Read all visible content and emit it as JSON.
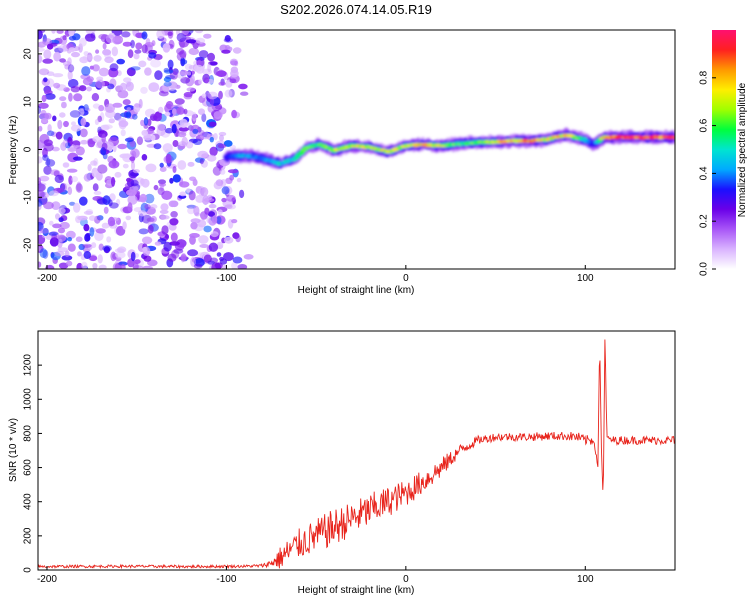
{
  "title": "S202.2026.074.14.05.R19",
  "chart_data": [
    {
      "type": "heatmap",
      "xlabel": "Height of straight line (km)",
      "ylabel": "Frequency (Hz)",
      "xlim": [
        -205,
        150
      ],
      "ylim": [
        -25,
        25
      ],
      "xticks": [
        -200,
        -100,
        0,
        100
      ],
      "yticks": [
        -20,
        -10,
        0,
        10,
        20
      ],
      "noise_region_x": [
        -205,
        -87
      ],
      "trace": {
        "x": [
          -100,
          -90,
          -80,
          -70,
          -62,
          -55,
          -48,
          -40,
          -30,
          -20,
          -10,
          0,
          10,
          20,
          30,
          40,
          50,
          60,
          70,
          80,
          85,
          90,
          95,
          100,
          105,
          110,
          120,
          130,
          140,
          150
        ],
        "freq": [
          -1.5,
          -1.2,
          -1.8,
          -3.0,
          -2.0,
          0.5,
          1.0,
          -0.2,
          0.8,
          0.5,
          -0.5,
          0.8,
          1.0,
          0.8,
          1.2,
          1.5,
          1.6,
          1.8,
          1.8,
          2.2,
          2.8,
          3.0,
          2.5,
          2.0,
          1.0,
          2.5,
          2.6,
          2.5,
          2.6,
          2.5
        ],
        "amplitude": [
          0.35,
          0.45,
          0.4,
          0.5,
          0.55,
          0.6,
          0.65,
          0.7,
          0.7,
          0.75,
          0.7,
          0.7,
          0.85,
          0.7,
          0.6,
          0.6,
          0.75,
          0.85,
          0.9,
          0.75,
          0.8,
          0.85,
          0.7,
          0.5,
          0.3,
          0.8,
          0.95,
          0.95,
          0.95,
          0.95
        ]
      },
      "colorbar": {
        "label": "Normalized spectral amplitude",
        "range": [
          0.0,
          1.0
        ],
        "ticks": [
          0.0,
          0.2,
          0.4,
          0.6,
          0.8
        ],
        "tick_labels": [
          "0.0",
          "0.2",
          "0.4",
          "0.6",
          "0.8"
        ],
        "stops": [
          "#ffffff",
          "#d9b3ff",
          "#a855f7",
          "#6a00e8",
          "#1a10ff",
          "#00aaff",
          "#00e5d0",
          "#00ff3c",
          "#a0ff00",
          "#ffee00",
          "#ff9900",
          "#ff2020",
          "#ff1070"
        ]
      }
    },
    {
      "type": "line",
      "xlabel": "Height of straight line (km)",
      "ylabel": "SNR (10 * v/v)",
      "xlim": [
        -205,
        150
      ],
      "ylim": [
        0,
        1400
      ],
      "xticks": [
        -200,
        -100,
        0,
        100
      ],
      "yticks": [
        0,
        200,
        400,
        600,
        800,
        1000,
        1200
      ],
      "color": "#e8241c",
      "series": [
        {
          "name": "SNR",
          "x": [
            -205,
            -160,
            -120,
            -90,
            -80,
            -75,
            -70,
            -60,
            -50,
            -40,
            -30,
            -20,
            -10,
            0,
            10,
            20,
            30,
            40,
            50,
            60,
            70,
            80,
            90,
            95,
            100,
            105,
            107,
            108,
            109,
            110,
            111,
            112,
            115,
            120,
            130,
            140,
            150
          ],
          "values": [
            20,
            22,
            20,
            22,
            25,
            40,
            70,
            150,
            200,
            250,
            300,
            350,
            400,
            450,
            520,
            600,
            700,
            760,
            780,
            780,
            780,
            785,
            785,
            780,
            760,
            760,
            600,
            1350,
            700,
            400,
            1400,
            780,
            760,
            760,
            760,
            760,
            760
          ],
          "noise_amplitude": [
            8,
            8,
            8,
            8,
            10,
            20,
            70,
            90,
            100,
            110,
            100,
            100,
            90,
            80,
            70,
            60,
            35,
            25,
            25,
            25,
            25,
            25,
            25,
            30,
            30,
            30,
            0,
            0,
            0,
            0,
            0,
            0,
            25,
            25,
            25,
            25,
            25
          ]
        }
      ]
    }
  ]
}
